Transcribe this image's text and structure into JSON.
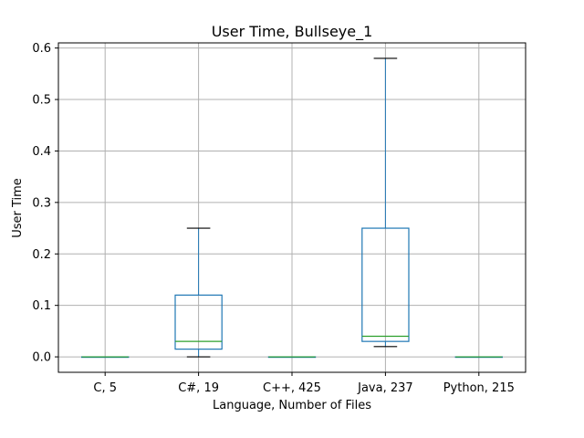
{
  "chart_data": {
    "type": "box",
    "title": "User Time, Bullseye_1",
    "xlabel": "Language, Number of Files",
    "ylabel": "User Time",
    "ylim": [
      -0.03,
      0.61
    ],
    "yticks": [
      "0.0",
      "0.1",
      "0.2",
      "0.3",
      "0.4",
      "0.5",
      "0.6"
    ],
    "grid": true,
    "categories": [
      "C, 5",
      "C#, 19",
      "C++, 425",
      "Java, 237",
      "Python, 215"
    ],
    "boxes": [
      {
        "category": "C, 5",
        "whisker_low": 0.0,
        "q1": 0.0,
        "median": 0.0,
        "q3": 0.0,
        "whisker_high": 0.0
      },
      {
        "category": "C#, 19",
        "whisker_low": 0.0,
        "q1": 0.015,
        "median": 0.03,
        "q3": 0.12,
        "whisker_high": 0.25
      },
      {
        "category": "C++, 425",
        "whisker_low": 0.0,
        "q1": 0.0,
        "median": 0.0,
        "q3": 0.0,
        "whisker_high": 0.0
      },
      {
        "category": "Java, 237",
        "whisker_low": 0.02,
        "q1": 0.03,
        "median": 0.04,
        "q3": 0.25,
        "whisker_high": 0.58
      },
      {
        "category": "Python, 215",
        "whisker_low": 0.0,
        "q1": 0.0,
        "median": 0.0,
        "q3": 0.0,
        "whisker_high": 0.0
      }
    ],
    "colors": {
      "box": "#1f77b4",
      "median": "#2ca02c",
      "cap": "#000000",
      "grid": "#b0b0b0"
    }
  }
}
